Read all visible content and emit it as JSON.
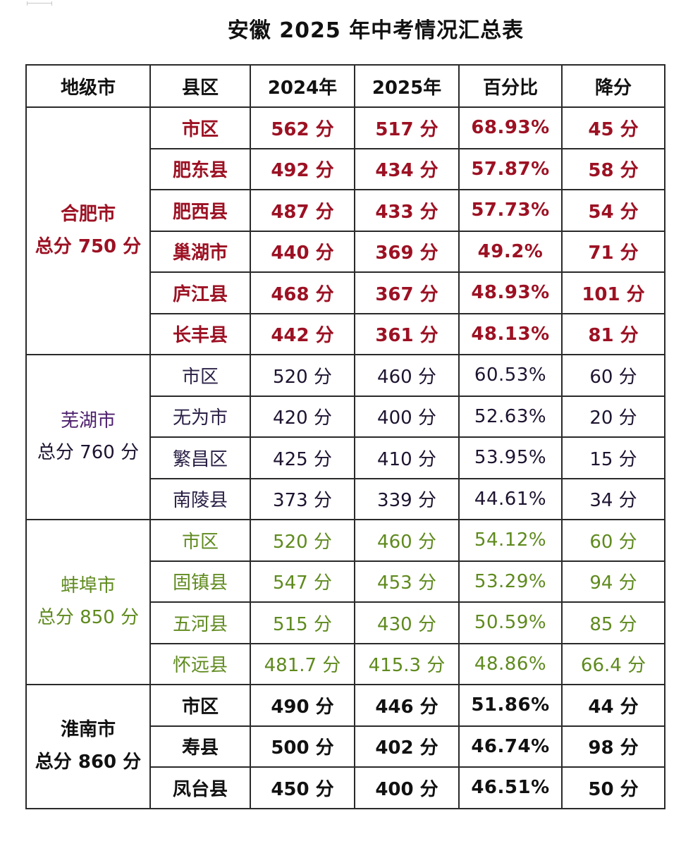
{
  "title": "安徽 2025 年中考情况汇总表",
  "headers": [
    "地级市",
    "县区",
    "2024年",
    "2025年",
    "百分比",
    "降分"
  ],
  "groups": [
    {
      "city": "合肥市",
      "total": "总分 750 分",
      "color": "#9c1123",
      "rows": [
        {
          "county": "市区",
          "y2024": "562 分",
          "y2025": "517 分",
          "pct": "68.93%",
          "drop": "45 分"
        },
        {
          "county": "肥东县",
          "y2024": "492 分",
          "y2025": "434 分",
          "pct": "57.87%",
          "drop": "58 分"
        },
        {
          "county": "肥西县",
          "y2024": "487 分",
          "y2025": "433 分",
          "pct": "57.73%",
          "drop": "54 分"
        },
        {
          "county": "巢湖市",
          "y2024": "440 分",
          "y2025": "369 分",
          "pct": "49.2%",
          "drop": "71 分"
        },
        {
          "county": "庐江县",
          "y2024": "468 分",
          "y2025": "367 分",
          "pct": "48.93%",
          "drop": "101 分"
        },
        {
          "county": "长丰县",
          "y2024": "442 分",
          "y2025": "361 分",
          "pct": "48.13%",
          "drop": "81 分"
        }
      ]
    },
    {
      "city": "芜湖市",
      "total": "总分 760 分",
      "color": "#4b1d6b",
      "rows": [
        {
          "county": "市区",
          "y2024": "520 分",
          "y2025": "460 分",
          "pct": "60.53%",
          "drop": "60 分"
        },
        {
          "county": "无为市",
          "y2024": "420 分",
          "y2025": "400 分",
          "pct": "52.63%",
          "drop": "20 分"
        },
        {
          "county": "繁昌区",
          "y2024": "425 分",
          "y2025": "410 分",
          "pct": "53.95%",
          "drop": "15 分"
        },
        {
          "county": "南陵县",
          "y2024": "373 分",
          "y2025": "339 分",
          "pct": "44.61%",
          "drop": "34 分"
        }
      ]
    },
    {
      "city": "蚌埠市",
      "total": "总分 850 分",
      "color": "#5f8a1e",
      "rows": [
        {
          "county": "市区",
          "y2024": "520 分",
          "y2025": "460 分",
          "pct": "54.12%",
          "drop": "60 分"
        },
        {
          "county": "固镇县",
          "y2024": "547 分",
          "y2025": "453 分",
          "pct": "53.29%",
          "drop": "94 分"
        },
        {
          "county": "五河县",
          "y2024": "515 分",
          "y2025": "430 分",
          "pct": "50.59%",
          "drop": "85 分"
        },
        {
          "county": "怀远县",
          "y2024": "481.7 分",
          "y2025": "415.3 分",
          "pct": "48.86%",
          "drop": "66.4 分"
        }
      ]
    },
    {
      "city": "淮南市",
      "total": "总分 860 分",
      "color": "#111111",
      "rows": [
        {
          "county": "市区",
          "y2024": "490 分",
          "y2025": "446 分",
          "pct": "51.86%",
          "drop": "44 分"
        },
        {
          "county": "寿县",
          "y2024": "500 分",
          "y2025": "402 分",
          "pct": "46.74%",
          "drop": "98 分"
        },
        {
          "county": "凤台县",
          "y2024": "450 分",
          "y2025": "400 分",
          "pct": "46.51%",
          "drop": "50 分"
        }
      ]
    }
  ]
}
